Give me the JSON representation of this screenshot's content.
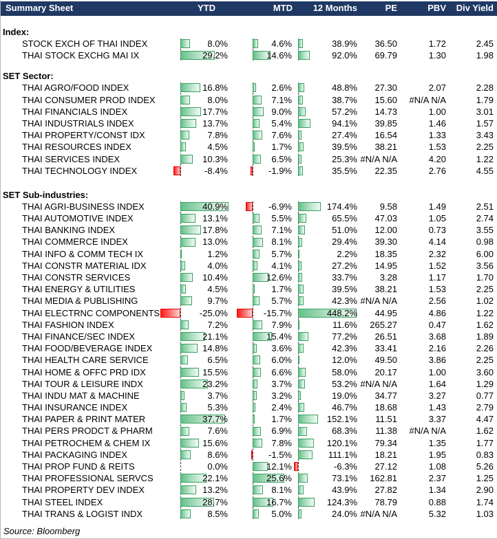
{
  "header": {
    "title": "Summary Sheet",
    "columns": {
      "ytd": "YTD",
      "mtd": "MTD",
      "months12": "12 Months",
      "pe": "PE",
      "pbv": "PBV",
      "div_yield": "Div Yield"
    }
  },
  "colors": {
    "header_bg": "#1F3864",
    "header_text": "#FFFFFF",
    "positive_bar_border": "#3aa05f",
    "positive_bar_fill_start": "#66c08a",
    "positive_bar_fill_end": "#f0faf4",
    "negative_bar_border": "#e60000",
    "negative_bar_fill_start": "#ff1a1a",
    "negative_bar_fill_end": "#ffd6d6"
  },
  "sections": [
    {
      "label": "Index:",
      "rows": [
        {
          "name": "STOCK EXCH OF THAI INDEX",
          "ytd": 8.0,
          "mtd": 4.6,
          "m12": 38.9,
          "pe": "36.50",
          "pbv": "1.72",
          "div": "2.45"
        },
        {
          "name": "THAI STOCK EXCHG MAI IX",
          "ytd": 29.2,
          "mtd": 14.6,
          "m12": 92.0,
          "pe": "69.79",
          "pbv": "1.30",
          "div": "1.98"
        }
      ]
    },
    {
      "label": "SET Sector:",
      "rows": [
        {
          "name": "THAI AGRO/FOOD INDEX",
          "ytd": 16.8,
          "mtd": 2.6,
          "m12": 48.8,
          "pe": "27.30",
          "pbv": "2.07",
          "div": "2.28"
        },
        {
          "name": "THAI CONSUMER PROD INDEX",
          "ytd": 8.0,
          "mtd": 7.1,
          "m12": 38.7,
          "pe": "15.60",
          "pbv": "#N/A N/A",
          "div": "1.79"
        },
        {
          "name": "THAI FINANCIALS INDEX",
          "ytd": 17.7,
          "mtd": 9.0,
          "m12": 57.2,
          "pe": "14.73",
          "pbv": "1.00",
          "div": "3.01"
        },
        {
          "name": "THAI INDUSTRIALS INDEX",
          "ytd": 13.7,
          "mtd": 5.4,
          "m12": 94.1,
          "pe": "39.85",
          "pbv": "1.46",
          "div": "1.57"
        },
        {
          "name": "THAI PROPERTY/CONST IDX",
          "ytd": 7.8,
          "mtd": 7.6,
          "m12": 27.4,
          "pe": "16.54",
          "pbv": "1.33",
          "div": "3.43"
        },
        {
          "name": "THAI RESOURCES INDEX",
          "ytd": 4.5,
          "mtd": 1.7,
          "m12": 39.5,
          "pe": "38.21",
          "pbv": "1.53",
          "div": "2.25"
        },
        {
          "name": "THAI SERVICES INDEX",
          "ytd": 10.3,
          "mtd": 6.5,
          "m12": 25.3,
          "pe": "#N/A N/A",
          "pbv": "4.20",
          "div": "1.22"
        },
        {
          "name": "THAI TECHNOLOGY INDEX",
          "ytd": -8.4,
          "mtd": -1.9,
          "m12": 35.5,
          "pe": "22.35",
          "pbv": "2.76",
          "div": "4.55"
        }
      ]
    },
    {
      "label": "SET Sub-industries:",
      "rows": [
        {
          "name": "THAI AGRI-BUSINESS INDEX",
          "ytd": 40.9,
          "mtd": -6.9,
          "m12": 174.4,
          "pe": "9.58",
          "pbv": "1.49",
          "div": "2.51"
        },
        {
          "name": "THAI AUTOMOTIVE INDEX",
          "ytd": 13.1,
          "mtd": 5.5,
          "m12": 65.5,
          "pe": "47.03",
          "pbv": "1.05",
          "div": "2.74"
        },
        {
          "name": "THAI BANKING INDEX",
          "ytd": 17.8,
          "mtd": 7.1,
          "m12": 51.0,
          "pe": "12.00",
          "pbv": "0.73",
          "div": "3.55"
        },
        {
          "name": "THAI COMMERCE INDEX",
          "ytd": 13.0,
          "mtd": 8.1,
          "m12": 29.4,
          "pe": "39.30",
          "pbv": "4.14",
          "div": "0.98"
        },
        {
          "name": "THAI INFO & COMM TECH IX",
          "ytd": 1.2,
          "mtd": 5.7,
          "m12": 2.2,
          "pe": "18.35",
          "pbv": "2.32",
          "div": "6.00"
        },
        {
          "name": "THAI CONSTR MATERIAL IDX",
          "ytd": 4.0,
          "mtd": 4.1,
          "m12": 27.2,
          "pe": "14.95",
          "pbv": "1.52",
          "div": "3.56"
        },
        {
          "name": "THAI CONSTR SERVICES",
          "ytd": 10.4,
          "mtd": 12.6,
          "m12": 33.7,
          "pe": "3.28",
          "pbv": "1.17",
          "div": "1.70"
        },
        {
          "name": "THAI ENERGY & UTILITIES",
          "ytd": 4.5,
          "mtd": 1.7,
          "m12": 39.5,
          "pe": "38.21",
          "pbv": "1.53",
          "div": "2.25"
        },
        {
          "name": "THAI MEDIA & PUBLISHING",
          "ytd": 9.7,
          "mtd": 5.7,
          "m12": 42.3,
          "pe": "#N/A N/A",
          "pbv": "2.56",
          "div": "1.02"
        },
        {
          "name": "THAI ELECTRNC COMPONENTS",
          "ytd": -25.0,
          "mtd": -15.7,
          "m12": 448.2,
          "pe": "44.95",
          "pbv": "4.86",
          "div": "1.22"
        },
        {
          "name": "THAI FASHION INDEX",
          "ytd": 7.2,
          "mtd": 7.9,
          "m12": 11.6,
          "pe": "265.27",
          "pbv": "0.47",
          "div": "1.62"
        },
        {
          "name": "THAI FINANCE/SEC INDEX",
          "ytd": 21.1,
          "mtd": 15.4,
          "m12": 77.2,
          "pe": "26.51",
          "pbv": "3.68",
          "div": "1.89"
        },
        {
          "name": "THAI FOOD/BEVERAGE INDEX",
          "ytd": 14.8,
          "mtd": 3.6,
          "m12": 42.3,
          "pe": "33.41",
          "pbv": "2.16",
          "div": "2.26"
        },
        {
          "name": "THAI HEALTH CARE SERVICE",
          "ytd": 6.5,
          "mtd": 6.0,
          "m12": 12.0,
          "pe": "49.50",
          "pbv": "3.86",
          "div": "2.25"
        },
        {
          "name": "THAI HOME & OFFC PRD IDX",
          "ytd": 15.5,
          "mtd": 6.6,
          "m12": 58.0,
          "pe": "20.17",
          "pbv": "1.00",
          "div": "3.60"
        },
        {
          "name": "THAI TOUR & LEISURE INDX",
          "ytd": 23.2,
          "mtd": 3.7,
          "m12": 53.2,
          "pe": "#N/A N/A",
          "pbv": "1.64",
          "div": "1.29"
        },
        {
          "name": "THAI INDU MAT & MACHINE",
          "ytd": 3.7,
          "mtd": 3.2,
          "m12": 19.0,
          "pe": "34.77",
          "pbv": "3.27",
          "div": "0.77"
        },
        {
          "name": "THAI INSURANCE INDEX",
          "ytd": 5.3,
          "mtd": 2.4,
          "m12": 46.7,
          "pe": "18.68",
          "pbv": "1.43",
          "div": "2.79"
        },
        {
          "name": "THAI PAPER & PRINT MATER",
          "ytd": 37.7,
          "mtd": 1.7,
          "m12": 152.1,
          "pe": "11.51",
          "pbv": "3.37",
          "div": "4.47"
        },
        {
          "name": "THAI PERS PRODCT & PHARM",
          "ytd": 7.6,
          "mtd": 6.9,
          "m12": 68.3,
          "pe": "11.38",
          "pbv": "#N/A N/A",
          "div": "1.62"
        },
        {
          "name": "THAI PETROCHEM & CHEM IX",
          "ytd": 15.6,
          "mtd": 7.8,
          "m12": 120.1,
          "pe": "79.34",
          "pbv": "1.35",
          "div": "1.77"
        },
        {
          "name": "THAI PACKAGING INDEX",
          "ytd": 8.6,
          "mtd": -1.5,
          "m12": 111.1,
          "pe": "18.21",
          "pbv": "1.95",
          "div": "0.83"
        },
        {
          "name": "THAI PROP FUND & REITS",
          "ytd": 0.0,
          "mtd": 12.1,
          "m12": -6.3,
          "pe": "27.12",
          "pbv": "1.08",
          "div": "5.26"
        },
        {
          "name": "THAI PROFESSIONAL SERVCS",
          "ytd": 22.1,
          "mtd": 25.6,
          "m12": 73.1,
          "pe": "162.81",
          "pbv": "2.37",
          "div": "1.25"
        },
        {
          "name": "THAI PROPERTY DEV INDEX",
          "ytd": 13.2,
          "mtd": 8.1,
          "m12": 43.9,
          "pe": "27.82",
          "pbv": "1.34",
          "div": "2.90"
        },
        {
          "name": "THAI STEEL INDEX",
          "ytd": 28.7,
          "mtd": 16.7,
          "m12": 124.3,
          "pe": "78.79",
          "pbv": "0.88",
          "div": "1.74"
        },
        {
          "name": "THAI TRANS & LOGIST INDX",
          "ytd": 8.5,
          "mtd": 5.0,
          "m12": 24.0,
          "pe": "#N/A N/A",
          "pbv": "5.32",
          "div": "1.03"
        }
      ]
    }
  ],
  "footer": {
    "source": "Source: Bloomberg"
  }
}
